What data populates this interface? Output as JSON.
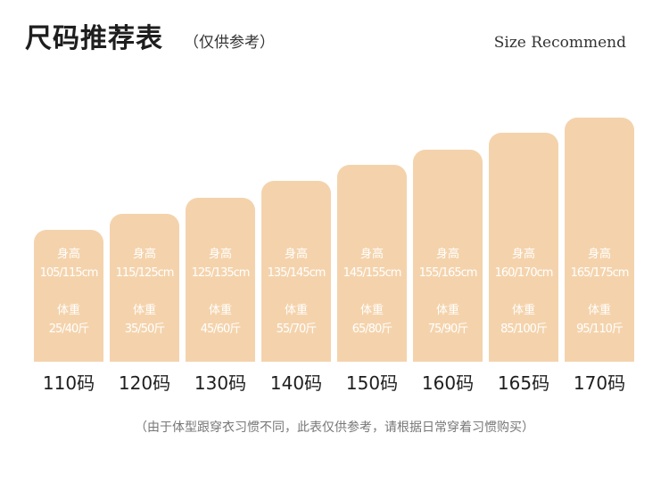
{
  "header": {
    "title": "尺码推荐表",
    "subtitle": "（仅供参考）",
    "english_title": "Size Recommend"
  },
  "colors": {
    "bar": "#f4d3ac",
    "bar_text": "#ffffff"
  },
  "chart_data": {
    "type": "bar",
    "categories": [
      "110码",
      "120码",
      "130码",
      "140码",
      "150码",
      "160码",
      "165码",
      "170码"
    ],
    "values": [
      148,
      166,
      184,
      203,
      221,
      238,
      257,
      274
    ],
    "height_label": "身高",
    "weight_label": "体重",
    "height_ranges": [
      "105/115cm",
      "115/125cm",
      "125/135cm",
      "135/145cm",
      "145/155cm",
      "155/165cm",
      "160/170cm",
      "165/175cm"
    ],
    "weight_ranges": [
      "25/40斤",
      "35/50斤",
      "45/60斤",
      "55/70斤",
      "65/80斤",
      "75/90斤",
      "85/100斤",
      "95/110斤"
    ]
  },
  "footnote": "（由于体型跟穿衣习惯不同，此表仅供参考，请根据日常穿着习惯购买）"
}
